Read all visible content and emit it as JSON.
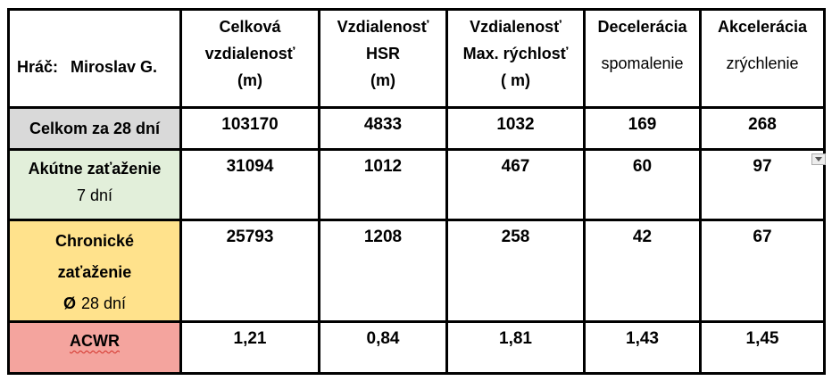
{
  "player": {
    "label": "Hráč:",
    "name": "Miroslav G."
  },
  "columns": [
    {
      "line1": "Celková",
      "line2": "vzdialenosť",
      "line3": "(m)"
    },
    {
      "line1": "Vzdialenosť",
      "line2": "HSR",
      "line3": "(m)"
    },
    {
      "line1": "Vzdialenosť",
      "line2": "Max. rýchlosť",
      "line3": "( m)"
    },
    {
      "title": "Decelerácia",
      "subtitle": "spomalenie"
    },
    {
      "title": "Akcelerácia",
      "subtitle": "zrýchlenie"
    }
  ],
  "rows": [
    {
      "label": "Celkom za 28 dní",
      "values": [
        "103170",
        "4833",
        "1032",
        "169",
        "268"
      ]
    },
    {
      "label_bold": "Akútne zaťaženie",
      "label_sub": "7 dní",
      "values": [
        "31094",
        "1012",
        "467",
        "60",
        "97"
      ]
    },
    {
      "label_line1": "Chronické",
      "label_line2": "zaťaženie",
      "label_prefix": "Ø",
      "label_sub": "28 dní",
      "values": [
        "25793",
        "1208",
        "258",
        "42",
        "67"
      ]
    },
    {
      "label": "ACWR",
      "values": [
        "1,21",
        "0,84",
        "1,81",
        "1,43",
        "1,45"
      ]
    }
  ],
  "colors": {
    "row1_label_bg": "#d9d9d9",
    "row2_label_bg": "#e2efda",
    "row3_label_bg": "#ffe28c",
    "row4_label_bg": "#f4a49e",
    "border": "#000000",
    "squiggle": "#d22f27"
  },
  "icons": {
    "dropdown": "triangle-down"
  }
}
